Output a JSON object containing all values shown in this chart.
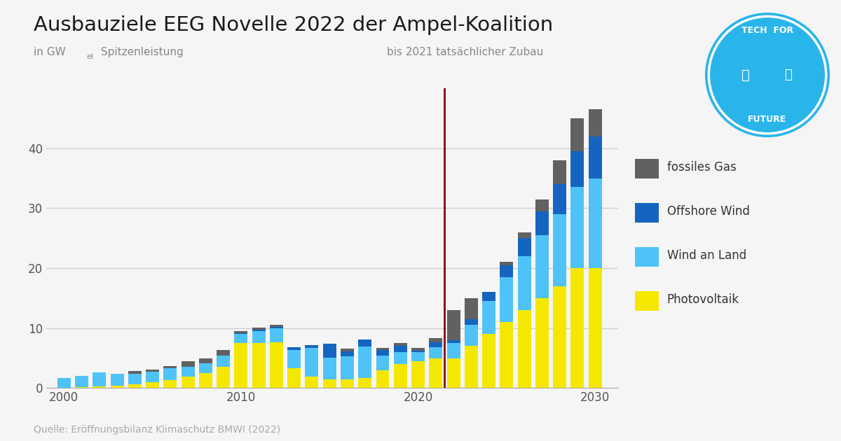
{
  "title": "Ausbauziele EEG Novelle 2022 der Ampel-Koalition",
  "subtitle_right": "bis 2021 tatsächlicher Zubau",
  "source": "Quelle: Eröffnungsbilanz Klimaschutz BMWI (2022)",
  "bg_color": "#f5f5f5",
  "years": [
    2000,
    2001,
    2002,
    2003,
    2004,
    2005,
    2006,
    2007,
    2008,
    2009,
    2010,
    2011,
    2012,
    2013,
    2014,
    2015,
    2016,
    2017,
    2018,
    2019,
    2020,
    2021,
    2022,
    2023,
    2024,
    2025,
    2026,
    2027,
    2028,
    2029,
    2030
  ],
  "pv": [
    0.1,
    0.2,
    0.3,
    0.4,
    0.6,
    1.0,
    1.3,
    1.9,
    2.5,
    3.5,
    7.5,
    7.5,
    7.6,
    3.3,
    1.9,
    1.4,
    1.5,
    1.7,
    3.0,
    4.0,
    4.5,
    5.0,
    5.0,
    7.0,
    9.0,
    11.0,
    13.0,
    15.0,
    17.0,
    20.0,
    20.0
  ],
  "wl": [
    1.6,
    1.8,
    2.3,
    2.0,
    1.8,
    1.7,
    2.0,
    1.7,
    1.6,
    1.9,
    1.5,
    2.0,
    2.4,
    3.0,
    4.8,
    3.7,
    3.8,
    5.2,
    2.4,
    2.0,
    1.5,
    1.8,
    2.5,
    3.5,
    5.5,
    7.5,
    9.0,
    10.5,
    12.0,
    13.5,
    15.0
  ],
  "ow": [
    0.0,
    0.0,
    0.0,
    0.0,
    0.0,
    0.0,
    0.0,
    0.0,
    0.0,
    0.0,
    0.1,
    0.2,
    0.2,
    0.5,
    0.5,
    2.3,
    0.8,
    1.2,
    0.9,
    1.1,
    0.2,
    0.8,
    0.5,
    1.0,
    1.5,
    2.0,
    3.0,
    4.0,
    5.0,
    6.0,
    7.0
  ],
  "fg": [
    0.0,
    0.0,
    0.0,
    0.0,
    0.4,
    0.4,
    0.4,
    0.9,
    0.9,
    0.9,
    0.4,
    0.4,
    0.4,
    0.0,
    0.0,
    0.0,
    0.5,
    0.0,
    0.4,
    0.4,
    0.5,
    0.7,
    5.0,
    3.5,
    0.0,
    0.5,
    1.0,
    2.0,
    4.0,
    5.5,
    4.5
  ],
  "color_pv": "#f5e800",
  "color_wl": "#4fc3f7",
  "color_ow": "#1565c0",
  "color_fg": "#616161",
  "vline_x": 2021.5,
  "vline_color": "#8b0000",
  "ylim_max": 50,
  "yticks": [
    0,
    10,
    20,
    30,
    40
  ],
  "grid_color": "#d0d0d0",
  "legend_labels": [
    "fossiles Gas",
    "Offshore Wind",
    "Wind an Land",
    "Photovoltaik"
  ]
}
